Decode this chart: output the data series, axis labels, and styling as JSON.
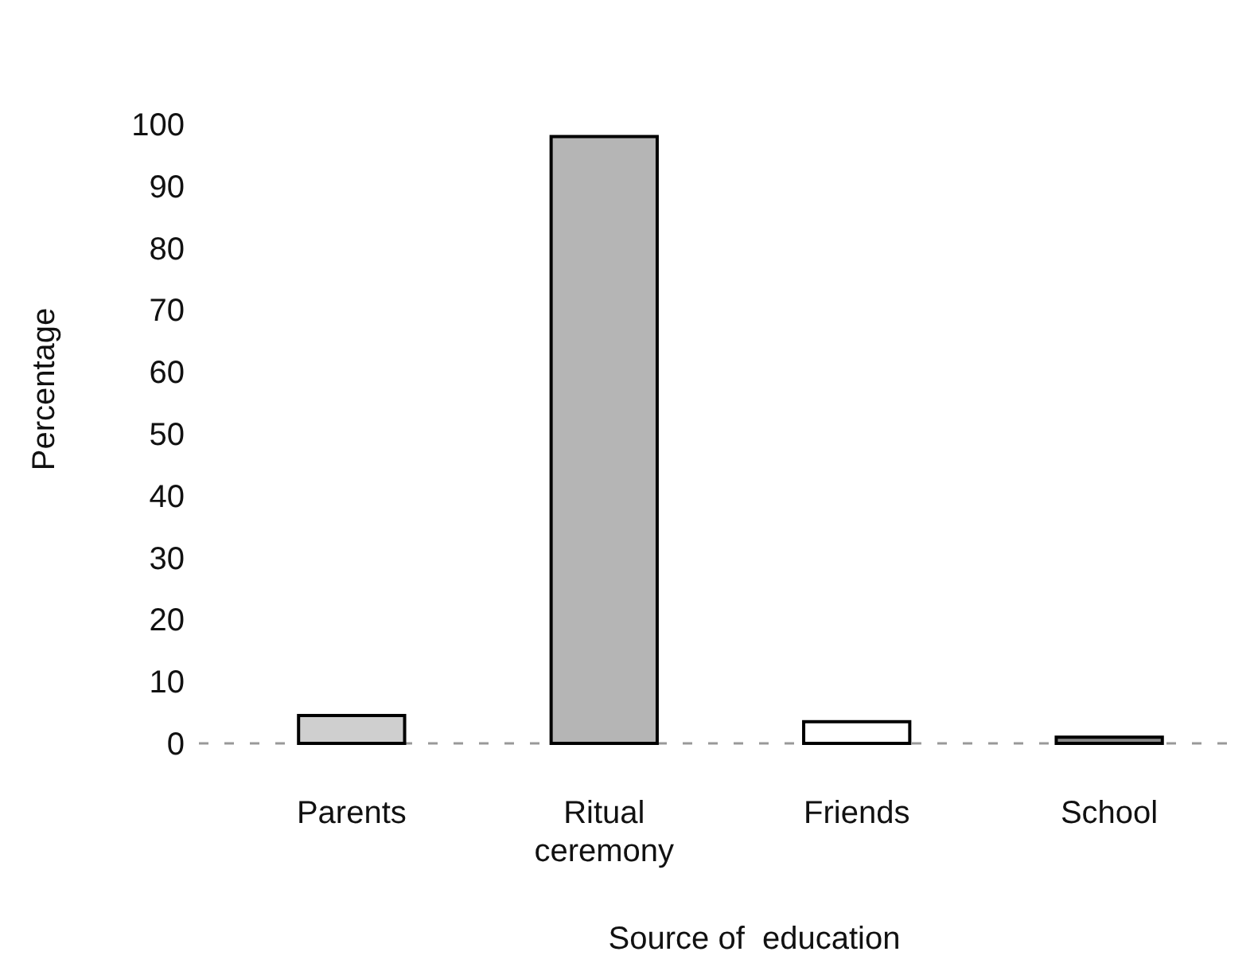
{
  "chart_data": {
    "type": "bar",
    "xlabel": "Source of  education",
    "ylabel": "Percentage",
    "categories": [
      "Parents",
      "Ritual ceremony",
      "Friends",
      "School"
    ],
    "values": [
      4.5,
      98,
      3.5,
      1
    ],
    "colors": [
      "#cfcfcf",
      "#b5b5b5",
      "#ffffff",
      "#8a8a8a"
    ],
    "ylim": [
      0,
      100
    ],
    "yticks": [
      0,
      10,
      20,
      30,
      40,
      50,
      60,
      70,
      80,
      90,
      100
    ],
    "grid": false
  }
}
